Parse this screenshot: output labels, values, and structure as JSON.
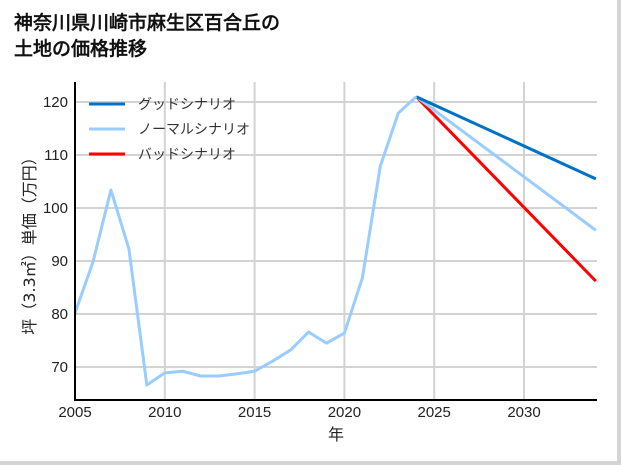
{
  "title": {
    "line1": "神奈川県川崎市麻生区百合丘の",
    "line2": "土地の価格推移"
  },
  "colors": {
    "good": "#0072c6",
    "normal": "#99ccff",
    "bad": "#ff0000",
    "grid": "#d3d3d3",
    "axis": "#000000",
    "frame": "#d4d4d4"
  },
  "chart_data": {
    "type": "line",
    "title": "神奈川県川崎市麻生区百合丘の土地の価格推移",
    "xlabel": "年",
    "ylabel": "坪（3.3㎡）単価（万円）",
    "xlim": [
      2005,
      2034
    ],
    "ylim": [
      63.8,
      123.5
    ],
    "xticks": [
      2005,
      2010,
      2015,
      2020,
      2025,
      2030
    ],
    "yticks": [
      70,
      80,
      90,
      100,
      110,
      120
    ],
    "grid": true,
    "legend_position": "upper left",
    "historical": {
      "x": [
        2005,
        2006,
        2007,
        2008,
        2009,
        2010,
        2011,
        2012,
        2013,
        2014,
        2015,
        2016,
        2017,
        2018,
        2019,
        2020,
        2021,
        2022,
        2023,
        2024
      ],
      "values": [
        80.2,
        89.8,
        103.4,
        92.3,
        66.6,
        68.9,
        69.2,
        68.3,
        68.3,
        68.7,
        69.2,
        71.1,
        73.2,
        76.6,
        74.5,
        76.4,
        86.8,
        107.9,
        117.9,
        121.0
      ]
    },
    "series": [
      {
        "name": "グッドシナリオ",
        "color": "#0072c6",
        "x": [
          2024,
          2034
        ],
        "values": [
          121.0,
          105.5
        ]
      },
      {
        "name": "ノーマルシナリオ",
        "color": "#99ccff",
        "x": [
          2024,
          2034
        ],
        "values": [
          121.0,
          95.8
        ]
      },
      {
        "name": "バッドシナリオ",
        "color": "#ff0000",
        "x": [
          2024,
          2034
        ],
        "values": [
          121.0,
          86.2
        ]
      }
    ]
  }
}
